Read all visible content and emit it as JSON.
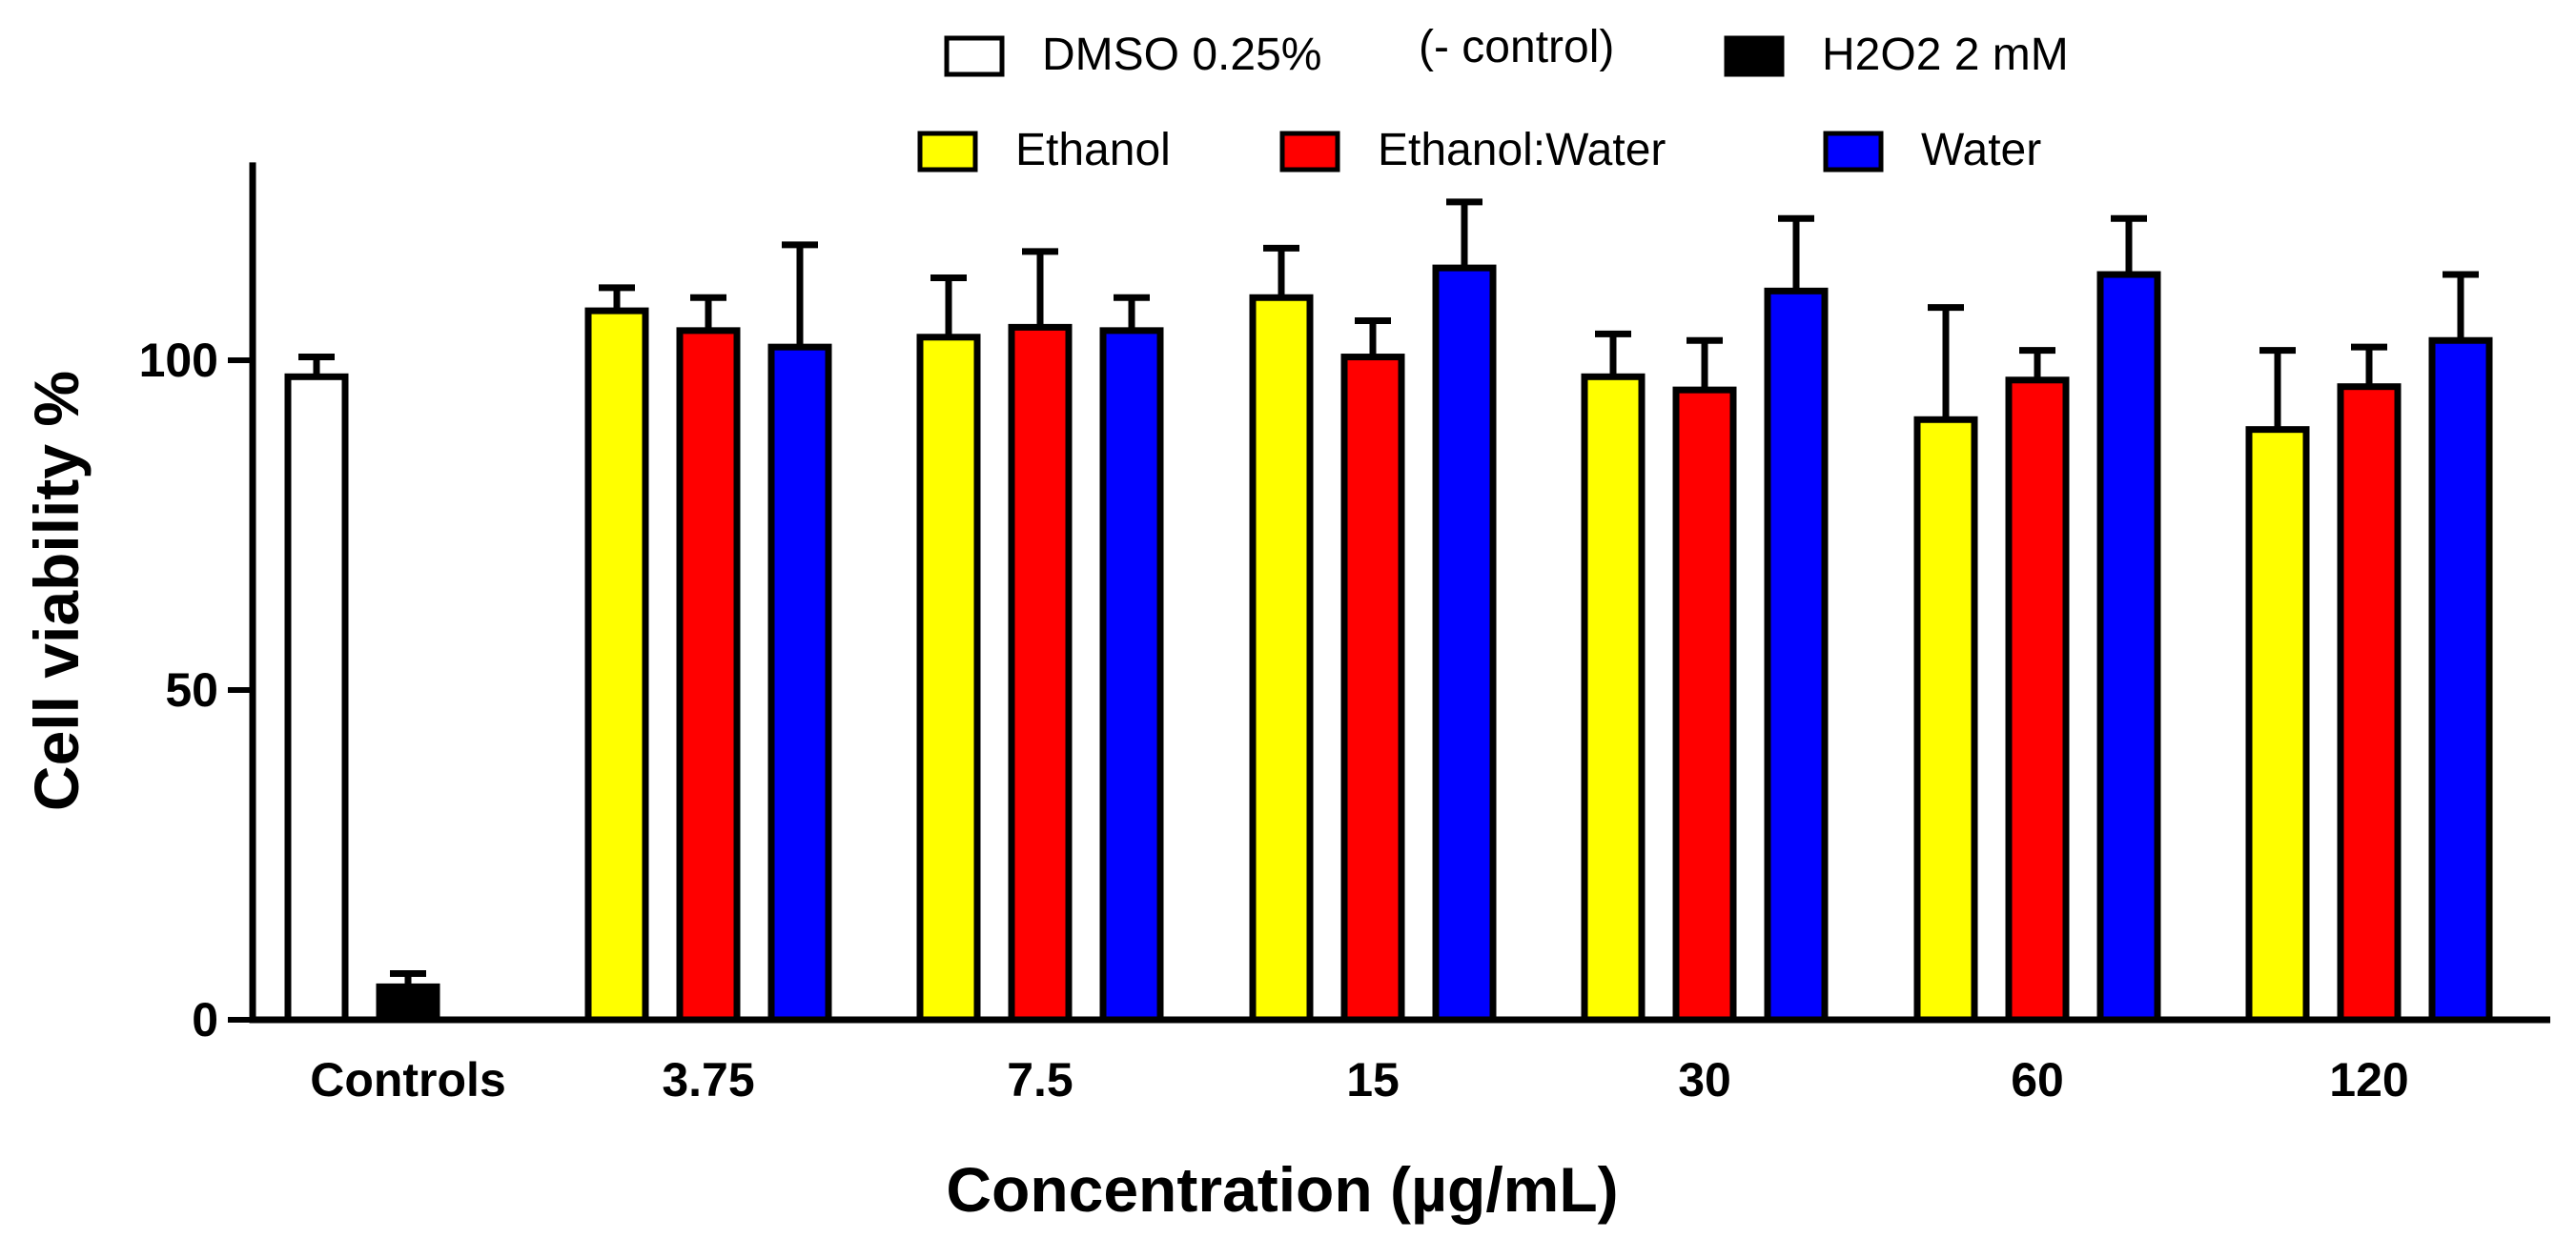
{
  "chart_data": {
    "type": "bar",
    "xlabel": "Concentration (µg/mL)",
    "ylabel": "Cell viability %",
    "ylim": [
      0,
      130
    ],
    "yticks": [
      0,
      50,
      100
    ],
    "legend_position": "top-center",
    "controls": {
      "category": "Controls",
      "series": [
        {
          "name": "DMSO 0.25%",
          "note": "(- control)",
          "color": "#ffffff",
          "value": 97.5,
          "error": 3
        },
        {
          "name": "H2O2 2 mM",
          "note": "",
          "color": "#000000",
          "value": 5,
          "error": 2
        }
      ]
    },
    "categories": [
      "3.75",
      "7.5",
      "15",
      "30",
      "60",
      "120"
    ],
    "series": [
      {
        "name": "Ethanol",
        "color": "#ffff00",
        "values": [
          107.5,
          103.5,
          109.5,
          97.5,
          91,
          89.5
        ],
        "errors": [
          3.5,
          9,
          7.5,
          6.5,
          17,
          12
        ]
      },
      {
        "name": "Ethanol:Water",
        "color": "#ff0000",
        "values": [
          104.5,
          105,
          100.5,
          95.5,
          97,
          96
        ],
        "errors": [
          5,
          11.5,
          5.5,
          7.5,
          4.5,
          6
        ]
      },
      {
        "name": "Water",
        "color": "#0000ff",
        "values": [
          102,
          104.5,
          114,
          110.5,
          113,
          103
        ],
        "errors": [
          15.5,
          5,
          10,
          11,
          8.5,
          10
        ]
      }
    ]
  }
}
